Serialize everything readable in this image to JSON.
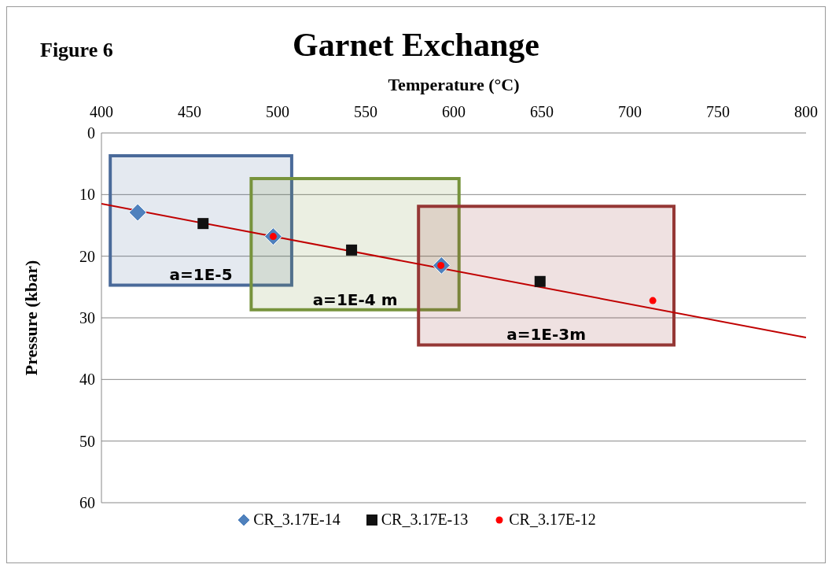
{
  "chart_data": {
    "type": "scatter",
    "title": "Garnet Exchange",
    "xlabel": "Temperature (°C)",
    "ylabel": "Pressure (kbar)",
    "xlim": [
      400,
      800
    ],
    "xticks": [
      400,
      450,
      500,
      550,
      600,
      650,
      700,
      750,
      800
    ],
    "ylim": [
      60,
      0
    ],
    "yticks": [
      0,
      10,
      20,
      30,
      40,
      50,
      60
    ],
    "grid": "y",
    "legend": "bottom",
    "series": [
      {
        "type": "area",
        "name": "a=1E-5",
        "color": "#4a6a9a",
        "x": [
          405,
          508,
          508,
          405,
          405
        ],
        "values": [
          3.7,
          3.7,
          24.7,
          24.7,
          3.7
        ]
      },
      {
        "type": "area",
        "name": "a=1E-4 m",
        "color": "#77933c",
        "x": [
          485,
          603,
          603,
          485,
          485
        ],
        "values": [
          7.4,
          7.4,
          28.7,
          28.7,
          7.4
        ]
      },
      {
        "type": "area",
        "name": "a=1E-3m",
        "color": "#953735",
        "x": [
          580,
          725,
          725,
          580,
          580
        ],
        "values": [
          11.9,
          11.9,
          34.4,
          34.4,
          11.9
        ]
      },
      {
        "type": "line",
        "color": "#c00000",
        "x": [
          400,
          800
        ],
        "values": [
          11.5,
          33.2
        ]
      },
      {
        "name": "CR_3.17E-14",
        "color": "#4f81bd",
        "marker": "diamond",
        "x": [
          420.6,
          497.5,
          593
        ],
        "values": [
          12.9,
          16.8,
          21.5
        ]
      },
      {
        "name": "CR_3.17E-13",
        "color": "#111111",
        "marker": "square",
        "x": [
          457.7,
          542,
          649
        ],
        "values": [
          14.7,
          19.0,
          24.1
        ]
      },
      {
        "name": "CR_3.17E-12",
        "color": "#ff0000",
        "marker": "circle",
        "x": [
          497.5,
          592.7,
          713
        ],
        "values": [
          16.8,
          21.5,
          27.2
        ]
      }
    ],
    "annotations": [
      "Figure 6"
    ]
  }
}
